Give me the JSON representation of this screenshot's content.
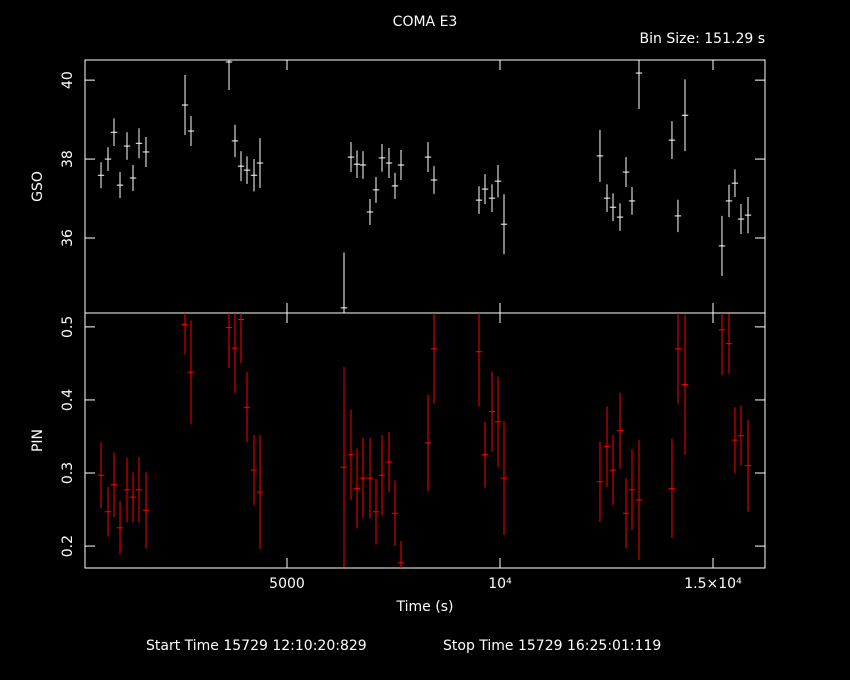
{
  "chart_data": [
    {
      "type": "errorbar",
      "title": "COMA E3",
      "subtitle": "Bin Size: 151.29 s",
      "ylabel": "GSO",
      "color": "#ffffff",
      "xlim": [
        258,
        16221
      ],
      "xticks": [
        5000,
        {
          "value": 10000,
          "label": "10⁴"
        },
        {
          "value": 15000,
          "label": "1.5×10⁴"
        }
      ],
      "ylim": [
        34.1,
        40.51
      ],
      "yticks": [
        36,
        38,
        40
      ],
      "x": [
        634,
        798,
        939,
        1080,
        1244,
        1385,
        1526,
        1690,
        2606,
        2746,
        3639,
        3779,
        3920,
        4061,
        4225,
        4366,
        6338,
        6502,
        6643,
        6784,
        6948,
        7089,
        7230,
        7394,
        7535,
        7676,
        8310,
        8451,
        9507,
        9648,
        9812,
        9953,
        10094,
        12347,
        12512,
        12653,
        12817,
        12958,
        13099,
        13263,
        14037,
        14178,
        14343,
        15211,
        15376,
        15516,
        15657,
        15822
      ],
      "values": [
        37.59,
        38.0,
        38.68,
        37.34,
        38.33,
        37.52,
        38.4,
        38.18,
        39.37,
        38.71,
        40.46,
        38.46,
        37.82,
        37.72,
        37.59,
        37.9,
        34.23,
        38.05,
        37.87,
        37.85,
        36.66,
        37.22,
        38.03,
        37.9,
        37.32,
        37.85,
        38.05,
        37.47,
        36.96,
        37.24,
        37.01,
        37.44,
        36.35,
        38.08,
        37.01,
        36.78,
        36.53,
        37.67,
        36.94,
        40.18,
        38.48,
        36.56,
        39.11,
        35.8,
        36.94,
        37.39,
        36.48,
        36.58
      ],
      "errors": [
        0.33,
        0.3,
        0.35,
        0.33,
        0.35,
        0.33,
        0.38,
        0.38,
        0.76,
        0.38,
        0.71,
        0.41,
        0.38,
        0.35,
        0.41,
        0.63,
        1.4,
        0.38,
        0.35,
        0.35,
        0.33,
        0.33,
        0.35,
        0.38,
        0.33,
        0.38,
        0.38,
        0.35,
        0.35,
        0.38,
        0.35,
        0.41,
        0.76,
        0.66,
        0.35,
        0.35,
        0.35,
        0.38,
        0.35,
        0.91,
        0.48,
        0.41,
        0.91,
        0.76,
        0.41,
        0.35,
        0.38,
        0.46
      ]
    },
    {
      "type": "errorbar",
      "ylabel": "PIN",
      "xlabel": "Time (s)",
      "color": "#ff0000",
      "xlim": [
        258,
        16221
      ],
      "xticks": [
        5000,
        {
          "value": 10000,
          "label": "10⁴"
        },
        {
          "value": 15000,
          "label": "1.5×10⁴"
        }
      ],
      "ylim": [
        0.17,
        0.519
      ],
      "yticks": [
        0.2,
        0.3,
        0.4,
        0.5
      ],
      "x": [
        634,
        798,
        939,
        1080,
        1244,
        1385,
        1526,
        1690,
        2606,
        2746,
        3639,
        3779,
        3920,
        4061,
        4225,
        4366,
        6338,
        6502,
        6643,
        6784,
        6948,
        7089,
        7230,
        7394,
        7535,
        7676,
        8310,
        8451,
        9507,
        9648,
        9812,
        9953,
        10094,
        12347,
        12512,
        12653,
        12817,
        12958,
        13099,
        13263,
        14037,
        14178,
        14343,
        15211,
        15376,
        15516,
        15657,
        15822
      ],
      "values": [
        0.297,
        0.247,
        0.284,
        0.225,
        0.277,
        0.267,
        0.277,
        0.249,
        0.503,
        0.438,
        0.499,
        0.471,
        0.51,
        0.39,
        0.304,
        0.274,
        0.308,
        0.325,
        0.279,
        0.293,
        0.293,
        0.247,
        0.297,
        0.315,
        0.245,
        0.177,
        0.341,
        0.47,
        0.466,
        0.325,
        0.384,
        0.37,
        0.293,
        0.288,
        0.336,
        0.304,
        0.358,
        0.245,
        0.277,
        0.263,
        0.279,
        0.47,
        0.421,
        0.496,
        0.477,
        0.345,
        0.351,
        0.31
      ],
      "errors": [
        0.045,
        0.034,
        0.044,
        0.037,
        0.044,
        0.034,
        0.045,
        0.052,
        0.041,
        0.071,
        0.055,
        0.062,
        0.06,
        0.048,
        0.048,
        0.078,
        0.137,
        0.062,
        0.055,
        0.055,
        0.055,
        0.045,
        0.055,
        0.041,
        0.045,
        0.03,
        0.066,
        0.075,
        0.075,
        0.045,
        0.055,
        0.062,
        0.078,
        0.055,
        0.055,
        0.048,
        0.052,
        0.048,
        0.055,
        0.082,
        0.068,
        0.075,
        0.096,
        0.062,
        0.041,
        0.045,
        0.041,
        0.063
      ]
    }
  ],
  "footer": {
    "start_time": "Start Time 15729 12:10:20:829",
    "stop_time": "Stop Time 15729 16:25:01:119"
  }
}
